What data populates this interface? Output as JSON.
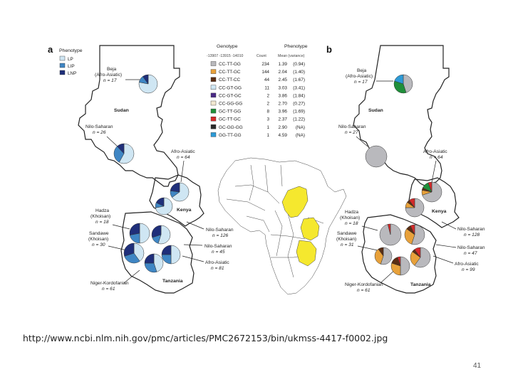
{
  "figure": {
    "panel_a_letter": "a",
    "panel_b_letter": "b",
    "legend": {
      "title": "Phenotype",
      "items": [
        {
          "label": "LP",
          "color": "#cfe6f3"
        },
        {
          "label": "LIP",
          "color": "#3f86c4"
        },
        {
          "label": "LNP",
          "color": "#1f2f7a"
        }
      ]
    },
    "table": {
      "genotype_header": "Genotype",
      "genotype_subheader": "-13907 -13915 -14010",
      "count_header": "Count",
      "phenotype_header": "Phenotype",
      "phenotype_subheader": "Mean (variance)",
      "rows": [
        {
          "genotype": "CC-TT-GG",
          "count": "234",
          "mean": "1.39",
          "variance": "(0.94)",
          "color": "#b9b9bd"
        },
        {
          "genotype": "CC-TT-GC",
          "count": "144",
          "mean": "2.04",
          "variance": "(1.40)",
          "color": "#e8a13a"
        },
        {
          "genotype": "CC-TT-CC",
          "count": "44",
          "mean": "2.45",
          "variance": "(1.67)",
          "color": "#5a2e14"
        },
        {
          "genotype": "CC-GT-GG",
          "count": "11",
          "mean": "3.03",
          "variance": "(3.41)",
          "color": "#cfe6f3"
        },
        {
          "genotype": "CC-GT-GC",
          "count": "2",
          "mean": "3.86",
          "variance": "(1.84)",
          "color": "#4a2a86"
        },
        {
          "genotype": "CC-GG-GG",
          "count": "2",
          "mean": "2.70",
          "variance": "(0.27)",
          "color": "#f2e8d2"
        },
        {
          "genotype": "GC-TT-GG",
          "count": "8",
          "mean": "3.96",
          "variance": "(1.69)",
          "color": "#1f8f3a"
        },
        {
          "genotype": "GC-TT-GC",
          "count": "3",
          "mean": "2.37",
          "variance": "(1.22)",
          "color": "#d42a2a"
        },
        {
          "genotype": "GC-GG-GG",
          "count": "1",
          "mean": "2.90",
          "variance": "(NA)",
          "color": "#2a2a2a"
        },
        {
          "genotype": "GG-TT-GG",
          "count": "1",
          "mean": "4.59",
          "variance": "(NA)",
          "color": "#2d9ad6"
        }
      ]
    },
    "map_a": {
      "countries": [
        {
          "name": "Sudan"
        },
        {
          "name": "Kenya"
        },
        {
          "name": "Tanzania"
        }
      ],
      "groups": [
        {
          "name": "Beja",
          "sub": "(Afro-Asiatic)",
          "n": "n = 17"
        },
        {
          "name": "Nilo-Saharan",
          "sub": "",
          "n": "n = 26"
        },
        {
          "name": "Afro-Asiatic",
          "sub": "",
          "n": "n = 64"
        },
        {
          "name": "Hadza",
          "sub": "(Khoisan)",
          "n": "n = 18"
        },
        {
          "name": "Sandawe",
          "sub": "(Khoisan)",
          "n": "n = 30"
        },
        {
          "name": "Nilo-Saharan",
          "sub": "",
          "n": "n = 126"
        },
        {
          "name": "Nilo-Saharan",
          "sub": "",
          "n": "n = 45"
        },
        {
          "name": "Afro-Asiatic",
          "sub": "",
          "n": "n = 81"
        },
        {
          "name": "Niger-Kordofanian",
          "sub": "",
          "n": "n = 61"
        }
      ]
    },
    "map_b": {
      "countries": [
        {
          "name": "Sudan"
        },
        {
          "name": "Kenya"
        },
        {
          "name": "Tanzania"
        }
      ],
      "groups": [
        {
          "name": "Beja",
          "sub": "(Afro-Asiatic)",
          "n": "n = 17"
        },
        {
          "name": "Nilo-Saharan",
          "sub": "",
          "n": "n = 27"
        },
        {
          "name": "Afro-Asiatic",
          "sub": "",
          "n": "n = 64"
        },
        {
          "name": "Hadza",
          "sub": "(Khoisan)",
          "n": "n = 18"
        },
        {
          "name": "Sandawe",
          "sub": "(Khoisan)",
          "n": "n = 31"
        },
        {
          "name": "Nilo-Saharan",
          "sub": "",
          "n": "n = 128"
        },
        {
          "name": "Nilo-Saharan",
          "sub": "",
          "n": "n = 47"
        },
        {
          "name": "Afro-Asiatic",
          "sub": "",
          "n": "n = 99"
        },
        {
          "name": "Niger-Kordofanian",
          "sub": "",
          "n": "n = 61"
        }
      ]
    },
    "pies_a": [
      {
        "slices": [
          0.78,
          0.12,
          0.1
        ]
      },
      {
        "slices": [
          0.58,
          0.3,
          0.12
        ]
      },
      {
        "slices": [
          0.65,
          0.12,
          0.23
        ]
      },
      {
        "slices": [
          0.72,
          0.1,
          0.18
        ]
      },
      {
        "slices": [
          0.5,
          0.22,
          0.28
        ]
      },
      {
        "slices": [
          0.55,
          0.15,
          0.3
        ]
      },
      {
        "slices": [
          0.4,
          0.3,
          0.3
        ]
      },
      {
        "slices": [
          0.45,
          0.3,
          0.25
        ]
      },
      {
        "slices": [
          0.5,
          0.25,
          0.25
        ]
      },
      {
        "slices": [
          0.35,
          0.2,
          0.45
        ]
      }
    ],
    "pies_b": [
      {
        "slices": [
          0.45,
          0.0,
          0.0,
          0.0,
          0.0,
          0.0,
          0.35,
          0.0,
          0.0,
          0.2
        ]
      },
      {
        "slices": [
          1.0,
          0,
          0,
          0,
          0,
          0,
          0,
          0,
          0,
          0
        ]
      },
      {
        "slices": [
          0.7,
          0.08,
          0.04,
          0.0,
          0.0,
          0.0,
          0.12,
          0.06,
          0.0,
          0.0
        ]
      },
      {
        "slices": [
          0.75,
          0.1,
          0.05,
          0.0,
          0.0,
          0.0,
          0.0,
          0.1,
          0.0,
          0.0
        ]
      },
      {
        "slices": [
          0.96,
          0.0,
          0.0,
          0.0,
          0.0,
          0.0,
          0.0,
          0.04,
          0.0,
          0.0
        ]
      },
      {
        "slices": [
          0.55,
          0.3,
          0.08,
          0.0,
          0.0,
          0.0,
          0.0,
          0.07,
          0.0,
          0.0
        ]
      },
      {
        "slices": [
          0.6,
          0.25,
          0.05,
          0.0,
          0.0,
          0.0,
          0.0,
          0.1,
          0.0,
          0.0
        ]
      },
      {
        "slices": [
          0.5,
          0.3,
          0.15,
          0.0,
          0.0,
          0.0,
          0.0,
          0.05,
          0.0,
          0.0
        ]
      },
      {
        "slices": [
          0.55,
          0.35,
          0.1,
          0,
          0,
          0,
          0,
          0,
          0,
          0
        ]
      },
      {
        "slices": [
          0.5,
          0.4,
          0.1,
          0,
          0,
          0,
          0,
          0,
          0,
          0
        ]
      }
    ]
  },
  "caption": {
    "url": "http://www.ncbi.nlm.nih.gov/pmc/articles/PMC2672153/bin/ukmss-4417-f0002.jpg"
  },
  "slide": {
    "page_number": "41"
  }
}
